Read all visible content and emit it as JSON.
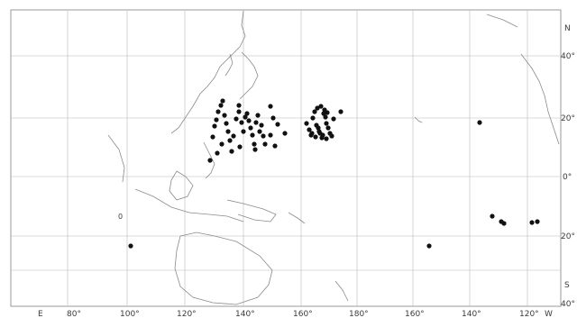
{
  "map": {
    "projection": "mercator-like",
    "longitude_labels": [
      "E",
      "80°",
      "100°",
      "120°",
      "140°",
      "160°",
      "180°",
      "160°",
      "140°",
      "120°",
      "W"
    ],
    "latitude_labels": [
      "N",
      "40°",
      "20°",
      "0°",
      "20°",
      "S",
      "40°"
    ],
    "zero_marker": "0",
    "points_count": 74
  }
}
